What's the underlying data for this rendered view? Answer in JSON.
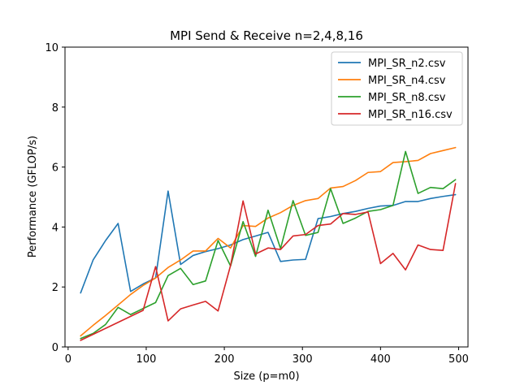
{
  "chart_data": {
    "type": "line",
    "title": "MPI Send & Receive n=2,4,8,16",
    "xlabel": "Size (p=m0)",
    "ylabel": "Performance (GFLOP/s)",
    "xlim": [
      -4,
      512
    ],
    "ylim": [
      0,
      10
    ],
    "xticks": [
      0,
      100,
      200,
      300,
      400,
      500
    ],
    "yticks": [
      0,
      2,
      4,
      6,
      8,
      10
    ],
    "grid": false,
    "legend_position": "top-right",
    "x": [
      16,
      32,
      48,
      64,
      80,
      96,
      112,
      128,
      144,
      160,
      176,
      192,
      208,
      224,
      240,
      256,
      272,
      288,
      304,
      320,
      336,
      352,
      368,
      384,
      400,
      416,
      432,
      448,
      464,
      480,
      496
    ],
    "series": [
      {
        "name": "MPI_SR_n2.csv",
        "color": "#1f77b4",
        "values": [
          1.8,
          2.9,
          3.55,
          4.12,
          1.85,
          2.1,
          2.3,
          5.2,
          2.75,
          3.05,
          3.18,
          3.28,
          3.4,
          3.58,
          3.7,
          3.82,
          2.85,
          2.9,
          2.92,
          4.28,
          4.35,
          4.45,
          4.52,
          4.62,
          4.7,
          4.72,
          4.85,
          4.85,
          4.95,
          5.02,
          5.08
        ]
      },
      {
        "name": "MPI_SR_n4.csv",
        "color": "#ff7f0e",
        "values": [
          0.37,
          0.72,
          1.05,
          1.4,
          1.75,
          2.05,
          2.3,
          2.65,
          2.9,
          3.2,
          3.2,
          3.62,
          3.3,
          4.05,
          4.02,
          4.3,
          4.48,
          4.72,
          4.88,
          4.95,
          5.3,
          5.35,
          5.55,
          5.82,
          5.85,
          6.15,
          6.18,
          6.22,
          6.45,
          6.55,
          6.65
        ]
      },
      {
        "name": "MPI_SR_n8.csv",
        "color": "#2ca02c",
        "values": [
          0.28,
          0.45,
          0.75,
          1.32,
          1.08,
          1.28,
          1.48,
          2.38,
          2.62,
          2.08,
          2.2,
          3.55,
          2.7,
          4.18,
          3.02,
          4.56,
          3.28,
          4.88,
          3.72,
          3.82,
          5.28,
          4.12,
          4.3,
          4.52,
          4.58,
          4.72,
          6.52,
          5.12,
          5.32,
          5.28,
          5.58
        ]
      },
      {
        "name": "MPI_SR_n16.csv",
        "color": "#d62728",
        "values": [
          0.22,
          0.42,
          0.62,
          0.82,
          1.02,
          1.22,
          2.68,
          0.87,
          1.27,
          1.4,
          1.52,
          1.2,
          2.72,
          4.87,
          3.1,
          3.3,
          3.25,
          3.7,
          3.75,
          4.05,
          4.1,
          4.45,
          4.42,
          4.5,
          2.78,
          3.12,
          2.57,
          3.4,
          3.25,
          3.22,
          5.45
        ]
      }
    ]
  }
}
